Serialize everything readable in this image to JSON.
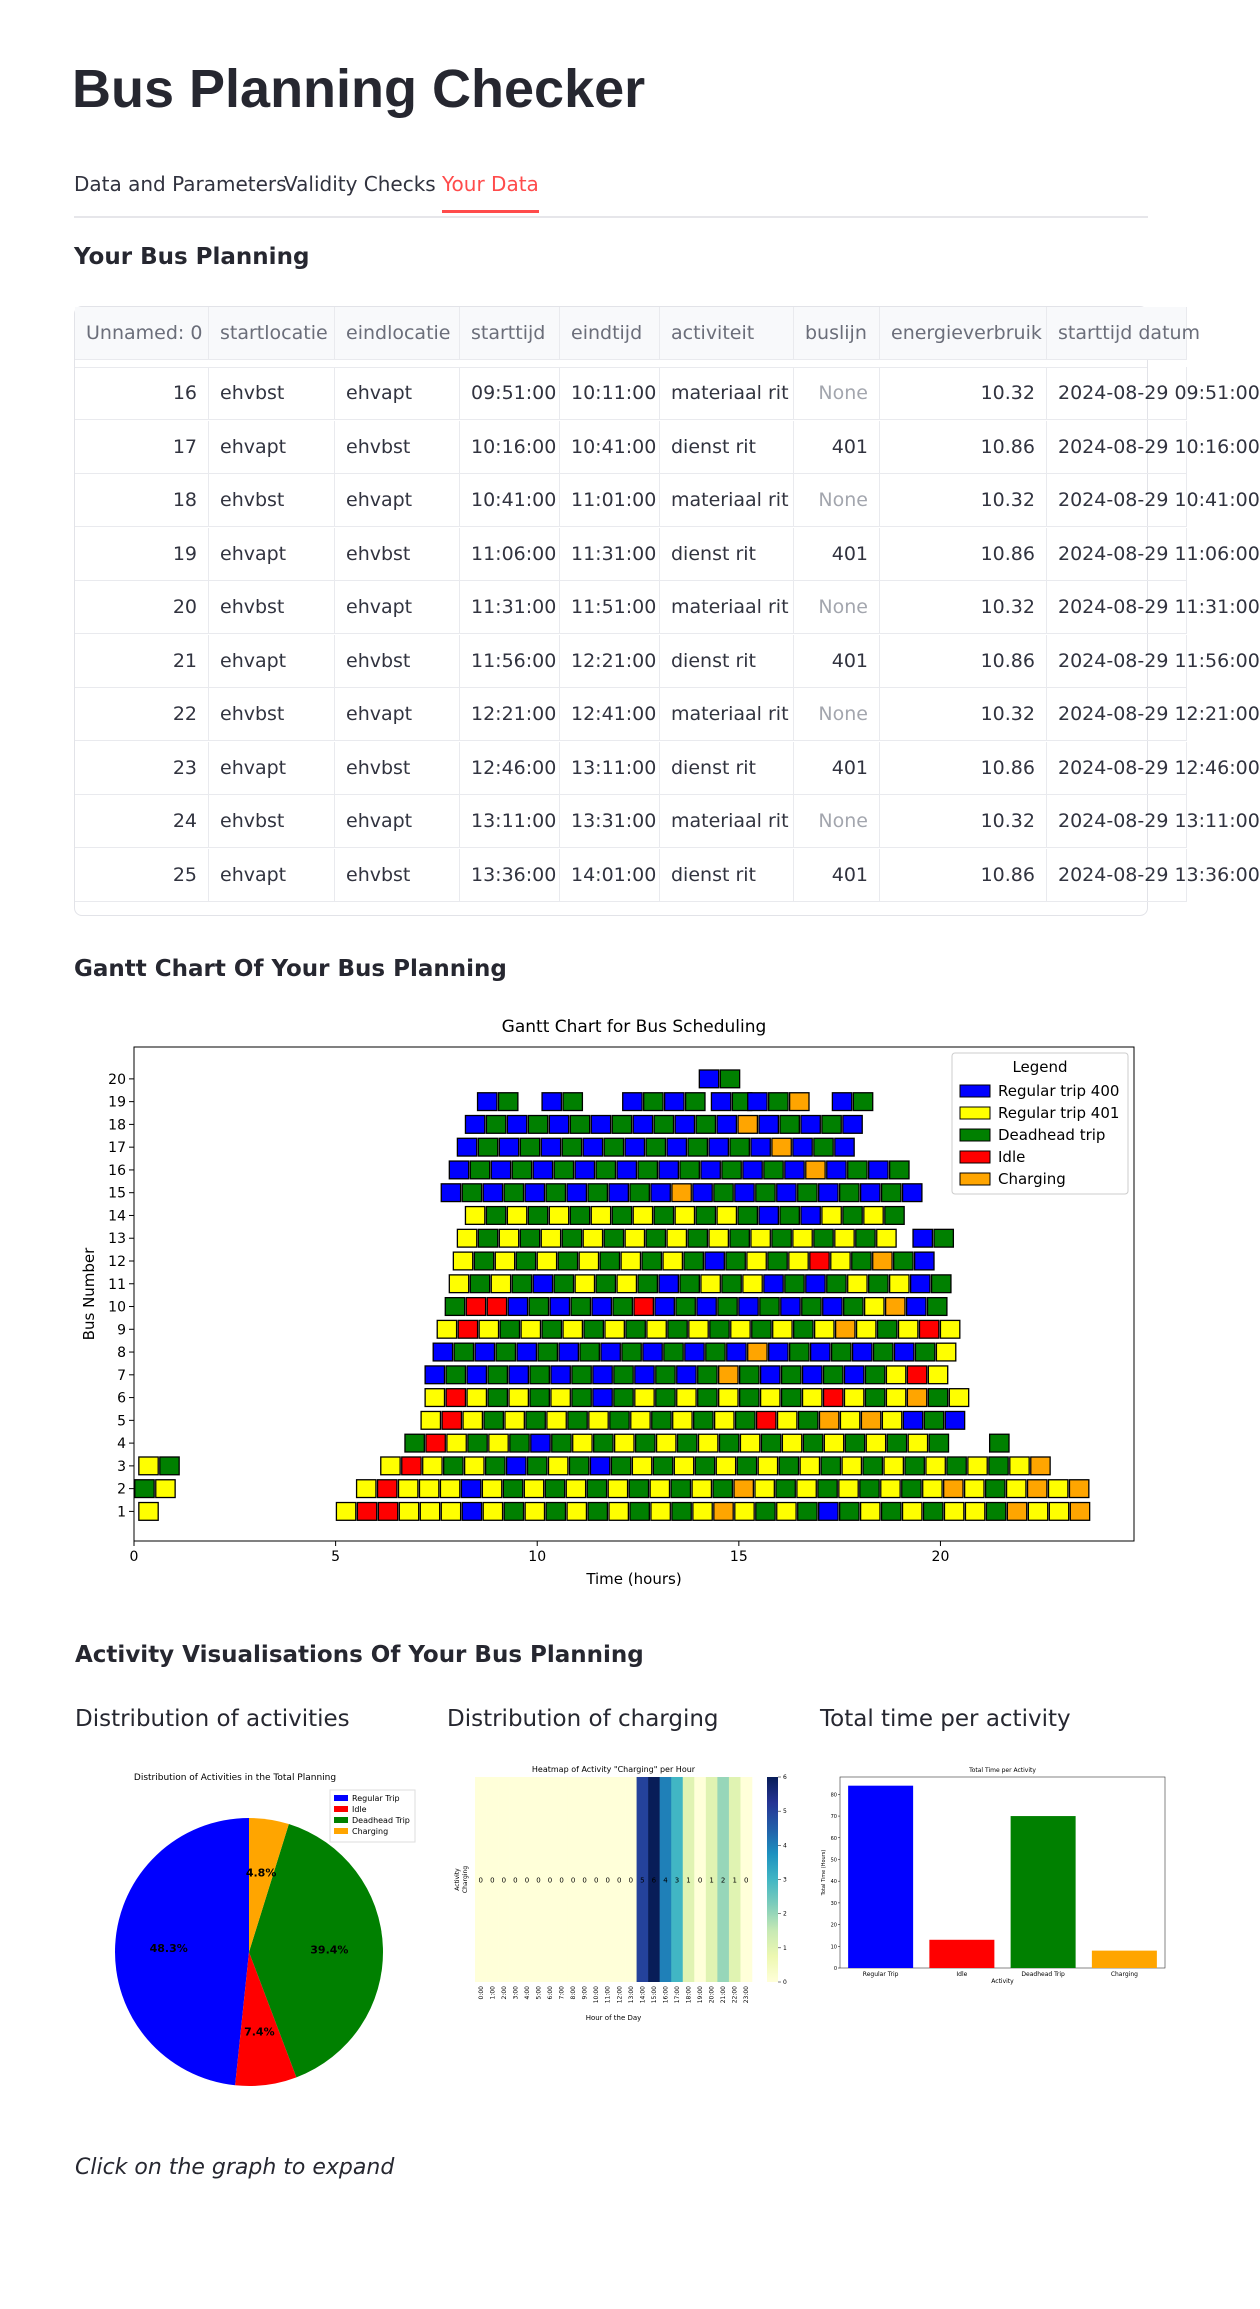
{
  "header": {
    "title": "Bus Planning Checker"
  },
  "tabs": [
    "Data and Parameters",
    "Validity Checks",
    "Your Data"
  ],
  "active_tab": 2,
  "table_heading": "Your Bus Planning",
  "table": {
    "columns": [
      "Unnamed: 0",
      "startlocatie",
      "eindlocatie",
      "starttijd",
      "eindtijd",
      "activiteit",
      "buslijn",
      "energieverbruik",
      "starttijd datum"
    ],
    "rows": [
      [
        16,
        "ehvbst",
        "ehvapt",
        "09:51:00",
        "10:11:00",
        "materiaal rit",
        "None",
        10.32,
        "2024-08-29 09:51:00"
      ],
      [
        17,
        "ehvapt",
        "ehvbst",
        "10:16:00",
        "10:41:00",
        "dienst rit",
        401,
        10.86,
        "2024-08-29 10:16:00"
      ],
      [
        18,
        "ehvbst",
        "ehvapt",
        "10:41:00",
        "11:01:00",
        "materiaal rit",
        "None",
        10.32,
        "2024-08-29 10:41:00"
      ],
      [
        19,
        "ehvapt",
        "ehvbst",
        "11:06:00",
        "11:31:00",
        "dienst rit",
        401,
        10.86,
        "2024-08-29 11:06:00"
      ],
      [
        20,
        "ehvbst",
        "ehvapt",
        "11:31:00",
        "11:51:00",
        "materiaal rit",
        "None",
        10.32,
        "2024-08-29 11:31:00"
      ],
      [
        21,
        "ehvapt",
        "ehvbst",
        "11:56:00",
        "12:21:00",
        "dienst rit",
        401,
        10.86,
        "2024-08-29 11:56:00"
      ],
      [
        22,
        "ehvbst",
        "ehvapt",
        "12:21:00",
        "12:41:00",
        "materiaal rit",
        "None",
        10.32,
        "2024-08-29 12:21:00"
      ],
      [
        23,
        "ehvapt",
        "ehvbst",
        "12:46:00",
        "13:11:00",
        "dienst rit",
        401,
        10.86,
        "2024-08-29 12:46:00"
      ],
      [
        24,
        "ehvbst",
        "ehvapt",
        "13:11:00",
        "13:31:00",
        "materiaal rit",
        "None",
        10.32,
        "2024-08-29 13:11:00"
      ],
      [
        25,
        "ehvapt",
        "ehvbst",
        "13:36:00",
        "14:01:00",
        "dienst rit",
        401,
        10.86,
        "2024-08-29 13:36:00"
      ]
    ]
  },
  "gantt_heading": "Gantt Chart Of Your Bus Planning",
  "activity_heading": "Activity Visualisations Of Your Bus Planning",
  "subheadings": [
    "Distribution of activities",
    "Distribution of charging",
    "Total time per activity"
  ],
  "caption": "Click on the graph to expand",
  "chart_data": [
    {
      "type": "gantt",
      "title": "Gantt Chart for Bus Scheduling",
      "xlabel": "Time (hours)",
      "ylabel": "Bus Number",
      "xlim": [
        0,
        24.8
      ],
      "ylim": [
        -0.3,
        21.4
      ],
      "xticks": [
        0,
        5,
        10,
        15,
        20
      ],
      "yticks": [
        1,
        2,
        3,
        4,
        5,
        6,
        7,
        8,
        9,
        10,
        11,
        12,
        13,
        14,
        15,
        16,
        17,
        18,
        19,
        20
      ],
      "legend_title": "Legend",
      "legend": "upper right",
      "block_hours": 0.52,
      "series": [
        {
          "name": "Regular trip 400",
          "color": "#0000ff"
        },
        {
          "name": "Regular trip 401",
          "color": "#ffff00"
        },
        {
          "name": "Deadhead trip",
          "color": "#008000"
        },
        {
          "name": "Idle",
          "color": "#ff0000"
        },
        {
          "name": "Charging",
          "color": "#ffa500"
        }
      ],
      "buses": [
        {
          "bus": 1,
          "runs": [
            {
              "start": 0.1,
              "blocks": [
                1
              ]
            },
            {
              "start": 5.0,
              "blocks": [
                1,
                3,
                3,
                1,
                1,
                1,
                0,
                1,
                2,
                1,
                2,
                1,
                2,
                1,
                2,
                1,
                2,
                1,
                4,
                1,
                2,
                1,
                2,
                0,
                2,
                1,
                2,
                1,
                2,
                1,
                1,
                2,
                4,
                1,
                1,
                4
              ]
            }
          ]
        },
        {
          "bus": 2,
          "runs": [
            {
              "start": 0.0,
              "blocks": [
                2,
                1
              ]
            },
            {
              "start": 5.5,
              "blocks": [
                1,
                3,
                1,
                1,
                1,
                0,
                1,
                2,
                1,
                2,
                1,
                2,
                1,
                2,
                1,
                2,
                1,
                2,
                4,
                1,
                2,
                1,
                2,
                1,
                2,
                1,
                2,
                1,
                4,
                1,
                2,
                1,
                4,
                1,
                4
              ]
            }
          ]
        },
        {
          "bus": 3,
          "runs": [
            {
              "start": 0.1,
              "blocks": [
                1,
                2
              ]
            },
            {
              "start": 6.1,
              "blocks": [
                1,
                3,
                1,
                2,
                1,
                2,
                0,
                2,
                1,
                2,
                0,
                2,
                1,
                2,
                1,
                2,
                1,
                2,
                1,
                2,
                1,
                2,
                1,
                2,
                1,
                2,
                1,
                2,
                1,
                2,
                1,
                4
              ]
            }
          ]
        },
        {
          "bus": 4,
          "runs": [
            {
              "start": 6.7,
              "blocks": [
                2,
                3,
                1,
                2,
                1,
                2,
                0,
                2,
                1,
                2,
                1,
                2,
                1,
                2,
                1,
                2,
                1,
                2,
                1,
                2,
                1,
                2,
                1,
                2,
                1,
                2
              ]
            },
            {
              "start": 21.2,
              "blocks": [
                2
              ]
            }
          ]
        },
        {
          "bus": 5,
          "runs": [
            {
              "start": 7.1,
              "blocks": [
                1,
                3,
                1,
                2,
                1,
                2,
                1,
                2,
                1,
                2,
                1,
                2,
                1,
                2,
                1,
                2,
                3,
                1,
                2,
                4,
                1,
                4,
                1,
                0,
                2,
                0
              ]
            }
          ]
        },
        {
          "bus": 6,
          "runs": [
            {
              "start": 7.2,
              "blocks": [
                1,
                3,
                1,
                2,
                1,
                2,
                1,
                2,
                0,
                2,
                1,
                2,
                1,
                2,
                1,
                2,
                1,
                2,
                1,
                3,
                1,
                2,
                1,
                4,
                2,
                1
              ]
            }
          ]
        },
        {
          "bus": 7,
          "runs": [
            {
              "start": 7.2,
              "blocks": [
                0,
                2,
                0,
                2,
                0,
                2,
                0,
                2,
                0,
                2,
                0,
                2,
                0,
                2,
                4,
                2,
                0,
                2,
                0,
                2,
                0,
                2,
                1,
                3,
                1
              ]
            }
          ]
        },
        {
          "bus": 8,
          "runs": [
            {
              "start": 7.4,
              "blocks": [
                0,
                2,
                0,
                2,
                0,
                2,
                0,
                2,
                0,
                2,
                0,
                2,
                0,
                2,
                0,
                4,
                0,
                2,
                0,
                2,
                0,
                2,
                0,
                2,
                1
              ]
            }
          ]
        },
        {
          "bus": 9,
          "runs": [
            {
              "start": 7.5,
              "blocks": [
                1,
                3,
                1,
                2,
                1,
                2,
                1,
                2,
                1,
                2,
                1,
                2,
                1,
                2,
                1,
                2,
                1,
                2,
                1,
                4,
                1,
                2,
                1,
                3,
                1
              ]
            }
          ]
        },
        {
          "bus": 10,
          "runs": [
            {
              "start": 7.7,
              "blocks": [
                2,
                3,
                3,
                0,
                2,
                0,
                2,
                0,
                2,
                3,
                0,
                2,
                0,
                2,
                0,
                2,
                0,
                2,
                0,
                2,
                1,
                4,
                0,
                2
              ]
            }
          ]
        },
        {
          "bus": 11,
          "runs": [
            {
              "start": 7.8,
              "blocks": [
                1,
                2,
                1,
                2,
                0,
                2,
                1,
                2,
                1,
                2,
                0,
                2,
                1,
                2,
                1,
                0,
                2,
                0,
                2,
                1,
                2,
                1,
                0,
                2
              ]
            }
          ]
        },
        {
          "bus": 12,
          "runs": [
            {
              "start": 7.9,
              "blocks": [
                1,
                2,
                1,
                2,
                1,
                2,
                1,
                2,
                1,
                2,
                1,
                2,
                0,
                2,
                1,
                2,
                1,
                3,
                1,
                2,
                4,
                2,
                0
              ]
            }
          ]
        },
        {
          "bus": 13,
          "runs": [
            {
              "start": 8.0,
              "blocks": [
                1,
                2,
                1,
                2,
                1,
                2,
                1,
                2,
                1,
                2,
                1,
                2,
                1,
                2,
                1,
                2,
                1,
                2,
                1,
                2,
                1
              ]
            },
            {
              "start": 19.3,
              "blocks": [
                0,
                2
              ]
            }
          ]
        },
        {
          "bus": 14,
          "runs": [
            {
              "start": 8.2,
              "blocks": [
                1,
                2,
                1,
                2,
                1,
                2,
                1,
                2,
                1,
                2,
                1,
                2,
                1,
                2,
                0,
                2,
                0,
                1,
                2,
                1,
                2
              ]
            }
          ]
        },
        {
          "bus": 15,
          "runs": [
            {
              "start": 7.6,
              "blocks": [
                0,
                2,
                0,
                2,
                0,
                2,
                0,
                2,
                0,
                2,
                0,
                4,
                0,
                2,
                0,
                2,
                0,
                2,
                0,
                2,
                0,
                2,
                0
              ]
            }
          ]
        },
        {
          "bus": 16,
          "runs": [
            {
              "start": 7.8,
              "blocks": [
                0,
                2,
                0,
                2,
                0,
                2,
                0,
                2,
                0,
                2,
                0,
                2,
                0,
                2,
                0,
                2,
                0,
                4,
                0,
                2,
                0,
                2
              ]
            }
          ]
        },
        {
          "bus": 17,
          "runs": [
            {
              "start": 8.0,
              "blocks": [
                0,
                2,
                0,
                2,
                0,
                2,
                0,
                2,
                0,
                2,
                0,
                2,
                0,
                2,
                0,
                4,
                0,
                2,
                0
              ]
            }
          ]
        },
        {
          "bus": 18,
          "runs": [
            {
              "start": 8.2,
              "blocks": [
                0,
                2,
                0,
                2,
                0,
                2,
                0,
                2,
                0,
                2,
                0,
                2,
                0,
                4,
                0,
                2,
                0,
                2,
                0
              ]
            }
          ]
        },
        {
          "bus": 19,
          "runs": [
            {
              "start": 8.5,
              "blocks": [
                0,
                2
              ]
            },
            {
              "start": 10.1,
              "blocks": [
                0,
                2
              ]
            },
            {
              "start": 12.1,
              "blocks": [
                0,
                2,
                0,
                2
              ]
            },
            {
              "start": 14.3,
              "blocks": [
                0,
                2
              ]
            },
            {
              "start": 15.2,
              "blocks": [
                0,
                2,
                4
              ]
            },
            {
              "start": 17.3,
              "blocks": [
                0,
                2
              ]
            }
          ]
        },
        {
          "bus": 20,
          "runs": [
            {
              "start": 14.0,
              "blocks": [
                0,
                2
              ]
            }
          ]
        }
      ]
    },
    {
      "type": "pie",
      "title": "Distribution of Activities in the Total Planning",
      "legend": "upper right",
      "categories": [
        "Regular Trip",
        "Idle",
        "Deadhead Trip",
        "Charging"
      ],
      "values": [
        48.3,
        7.4,
        39.4,
        4.8
      ],
      "value_labels": [
        "48.3%",
        "7.4%",
        "39.4%",
        "4.8%"
      ],
      "colors": [
        "#0000ff",
        "#ff0000",
        "#008000",
        "#ffa500"
      ],
      "start_angle": 90
    },
    {
      "type": "heatmap",
      "title": "Heatmap of Activity \"Charging\" per Hour",
      "xlabel": "Hour of the Day",
      "ylabel": "Activity",
      "ytick_labels": [
        "Charging"
      ],
      "categories": [
        "0:00",
        "1:00",
        "2:00",
        "3:00",
        "4:00",
        "5:00",
        "6:00",
        "7:00",
        "8:00",
        "9:00",
        "10:00",
        "11:00",
        "12:00",
        "13:00",
        "14:00",
        "15:00",
        "16:00",
        "17:00",
        "18:00",
        "19:00",
        "20:00",
        "21:00",
        "22:00",
        "23:00"
      ],
      "values": [
        0,
        0,
        0,
        0,
        0,
        0,
        0,
        0,
        0,
        0,
        0,
        0,
        0,
        0,
        5,
        6,
        4,
        3,
        1,
        0,
        1,
        2,
        1,
        0
      ],
      "colormap": "YlGnBu",
      "clim": [
        0,
        6
      ],
      "cticks": [
        0,
        1,
        2,
        3,
        4,
        5,
        6
      ]
    },
    {
      "type": "bar",
      "title": "Total Time per Activity",
      "xlabel": "Activity",
      "ylabel": "Total Time (Hours)",
      "categories": [
        "Regular Trip",
        "Idle",
        "Deadhead Trip",
        "Charging"
      ],
      "values": [
        84,
        13,
        70,
        8
      ],
      "colors": [
        "#0000ff",
        "#ff0000",
        "#008000",
        "#ffa500"
      ],
      "ylim": [
        0,
        88
      ],
      "yticks": [
        0,
        10,
        20,
        30,
        40,
        50,
        60,
        70,
        80
      ]
    }
  ]
}
